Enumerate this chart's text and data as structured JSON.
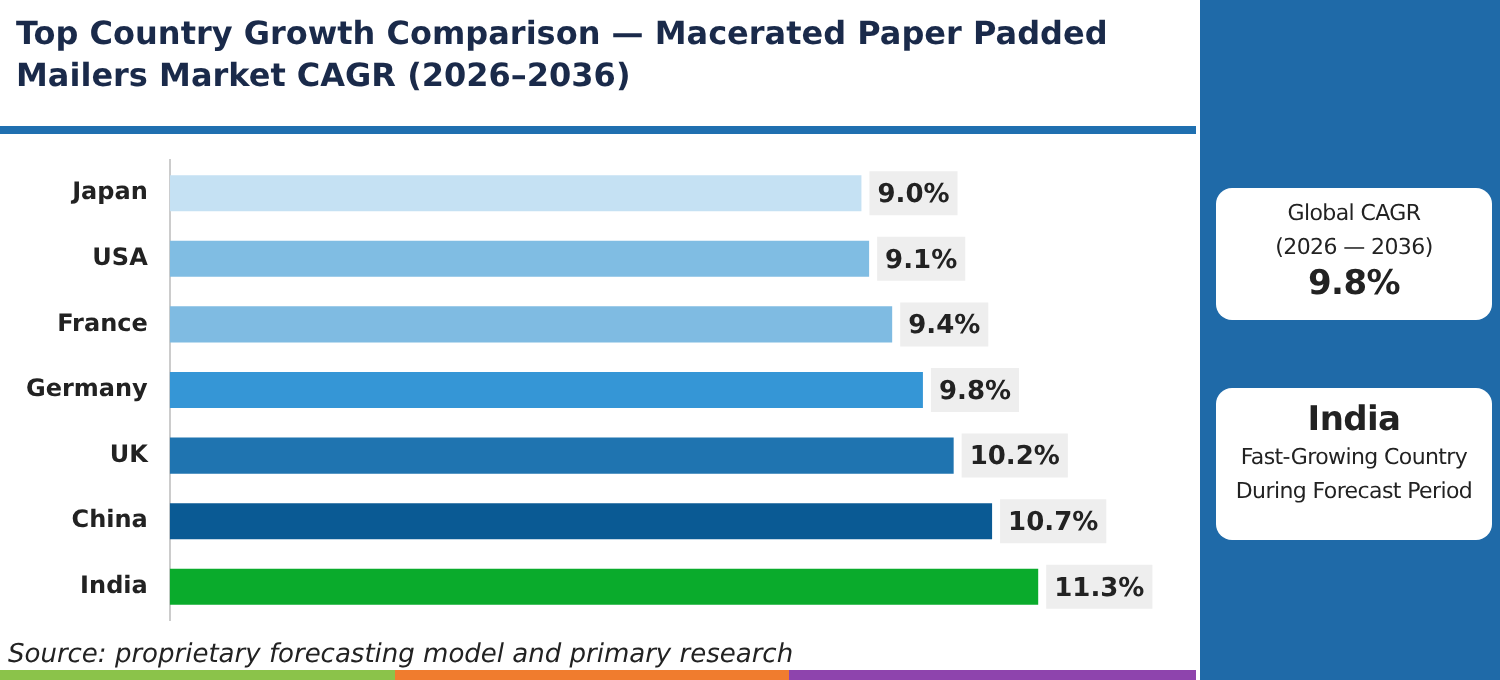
{
  "chart_data": {
    "type": "bar",
    "orientation": "horizontal",
    "title": "Top Country Growth Comparison — Macerated Paper Padded Mailers Market CAGR (2026–2036)",
    "categories": [
      "Japan",
      "USA",
      "France",
      "Germany",
      "UK",
      "China",
      "India"
    ],
    "values": [
      9.0,
      9.1,
      9.4,
      9.8,
      10.2,
      10.7,
      11.3
    ],
    "value_labels": [
      "9.0%",
      "9.1%",
      "9.4%",
      "9.8%",
      "10.2%",
      "10.7%",
      "11.3%"
    ],
    "colors": [
      "#c5e1f3",
      "#80bde3",
      "#7fbbe2",
      "#3596d6",
      "#1f74b0",
      "#0a5a94",
      "#0aab2c"
    ],
    "tick_labels": "y",
    "annotations": [
      "Source: proprietary forecasting model and primary research",
      "Global CAGR",
      "(2026 — 2036)",
      "9.8%",
      "India",
      "Fast-Growing Country During Forecast Period"
    ]
  }
}
